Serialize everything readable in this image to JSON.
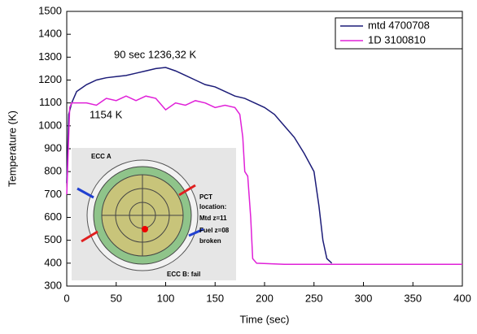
{
  "chart_data": {
    "type": "line",
    "x_label": "Time (sec)",
    "y_label": "Temperature (K)",
    "xlim": [
      0,
      400
    ],
    "xticks": [
      0,
      50,
      100,
      150,
      200,
      250,
      300,
      350,
      400
    ],
    "ylim": [
      300,
      1500
    ],
    "yticks": [
      300,
      400,
      500,
      600,
      700,
      800,
      900,
      1000,
      1100,
      1200,
      1300,
      1400,
      1500
    ],
    "legend": "upper right",
    "annotations": [
      "90 sec 1236,32 K",
      "1154 K"
    ],
    "inset_labels": [
      "ECC A",
      "PCT",
      "location:",
      "Mtd z=11",
      "Fuel z=08",
      "broken",
      "ECC B: fail"
    ],
    "series": [
      {
        "name": "mtd 4700708",
        "color": "#1c1c78",
        "x": [
          0,
          2,
          5,
          10,
          20,
          30,
          40,
          50,
          60,
          70,
          80,
          90,
          100,
          110,
          120,
          130,
          140,
          150,
          160,
          170,
          180,
          190,
          200,
          210,
          220,
          230,
          240,
          250,
          255,
          259,
          263,
          268
        ],
        "values": [
          750,
          1050,
          1100,
          1150,
          1180,
          1200,
          1210,
          1215,
          1220,
          1230,
          1240,
          1250,
          1255,
          1240,
          1220,
          1200,
          1180,
          1170,
          1150,
          1130,
          1120,
          1100,
          1080,
          1050,
          1000,
          950,
          880,
          800,
          650,
          500,
          420,
          400
        ]
      },
      {
        "name": "1D 3100810",
        "color": "#e020d8",
        "x": [
          0,
          3,
          5,
          20,
          30,
          40,
          50,
          60,
          70,
          80,
          90,
          100,
          110,
          120,
          130,
          140,
          150,
          160,
          170,
          175,
          178,
          180,
          183,
          186,
          188,
          192,
          220,
          400
        ],
        "values": [
          700,
          1080,
          1100,
          1100,
          1090,
          1120,
          1110,
          1130,
          1110,
          1130,
          1120,
          1070,
          1100,
          1090,
          1110,
          1100,
          1080,
          1090,
          1080,
          1050,
          950,
          800,
          780,
          600,
          420,
          400,
          395,
          395
        ]
      }
    ]
  }
}
